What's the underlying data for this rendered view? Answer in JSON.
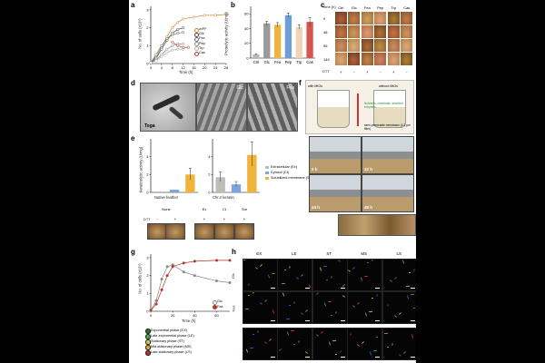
{
  "panel_labels": [
    "a",
    "b",
    "c",
    "d",
    "e",
    "f",
    "g",
    "h"
  ],
  "panel_a": {
    "ylabel": "No. of cells (x10⁹)",
    "xlabel": "Time (h)",
    "legend": [
      "w/FF",
      "Glc",
      "Fea",
      "Pep",
      "Trp",
      "Cas"
    ]
  },
  "panel_b": {
    "ylabel": "Proteolytic activity (U/mg)"
  },
  "panel_c": {
    "header_time": "Time (h)",
    "cols": [
      "Ctrl",
      "Glc",
      "Fea",
      "Pep",
      "Trp",
      "Cas"
    ],
    "rows": [
      "0",
      "48",
      "96",
      "144"
    ],
    "dtt_label": "DTT",
    "dtt_signs": [
      "+",
      "-",
      "+",
      "-",
      "+",
      "-"
    ]
  },
  "panel_d": {
    "labels": [
      "Glc",
      "Fea",
      "Toga"
    ]
  },
  "panel_e": {
    "ylabel": "Keratinolytic activity (U/mg)",
    "legend": [
      "Extracellular (Ex)",
      "Cytosol (Ct)",
      "Solubilized membrane (Sm)"
    ],
    "group_labels": [
      "Native feather",
      "Chr.2 keratin"
    ],
    "strip_headers": [
      "None",
      "Ex",
      "Ct",
      "Sm"
    ],
    "dtt_label": "DTT",
    "dtt_signs": [
      "-",
      "+",
      "+",
      "+",
      "+"
    ]
  },
  "panel_f": {
    "left_label": "with MtOs",
    "right_label": "without MtOs",
    "middle_text": "Nutrients, chemicals, secreted enzymes",
    "membrane_text": "semi-permeable membrane (0.2 μm filter)",
    "times": [
      "0 h",
      "32 h",
      "24 h",
      "48 h"
    ]
  },
  "panel_g": {
    "ylabel": "No. of cells (x10⁹)",
    "xlabel": "Time (h)",
    "legend": [
      "Glc",
      "Fea"
    ],
    "phase_legend": [
      "Exponential phase (EX)",
      "Late-exponential phase (LE)",
      "Stationary phase (ST)",
      "Mid-stationary phase (MS)",
      "Late-stationary phase (LS)"
    ],
    "phase_colors": [
      "#2d6b2f",
      "#3fae49",
      "#c9d43a",
      "#f0a22b",
      "#b5352a"
    ]
  },
  "panel_h": {
    "cols": [
      "EX",
      "LE",
      "ST",
      "MS",
      "LS"
    ],
    "rows": [
      "Glc",
      "Fea"
    ]
  },
  "chart_data": [
    {
      "type": "line",
      "ylabel": "No. of cells (x10⁹)",
      "xlabel": "Time (h)",
      "x_ticks": [
        "0",
        "4",
        "8",
        "12",
        "16",
        "20",
        "24",
        "28"
      ],
      "y_ticks": [
        "0",
        "1",
        "2",
        "3"
      ],
      "ylim": [
        0,
        3.2
      ],
      "series": [
        {
          "name": "w/FF",
          "x": [
            0,
            2,
            4,
            6,
            8,
            10,
            12,
            16,
            20,
            24,
            28
          ],
          "y": [
            0.05,
            0.4,
            0.9,
            1.5,
            2.0,
            2.3,
            2.5,
            2.6,
            2.7,
            2.7,
            2.75
          ],
          "color": "#c8872b"
        },
        {
          "name": "Glc",
          "x": [
            0,
            2,
            4,
            6,
            8,
            10,
            12
          ],
          "y": [
            0.05,
            0.3,
            0.8,
            1.3,
            1.7,
            1.9,
            2.0
          ],
          "color": "#444444"
        },
        {
          "name": "Fea",
          "x": [
            0,
            2,
            4,
            6,
            8,
            10,
            12
          ],
          "y": [
            0.05,
            0.5,
            1.0,
            1.4,
            1.6,
            1.7,
            1.75
          ],
          "color": "#666666"
        },
        {
          "name": "Pep",
          "x": [
            0,
            2,
            4,
            6,
            8,
            10,
            12
          ],
          "y": [
            0.05,
            0.2,
            0.5,
            0.8,
            1.0,
            1.1,
            1.1
          ],
          "color": "#888888"
        },
        {
          "name": "Trp",
          "x": [
            0,
            2,
            4,
            6,
            8,
            10,
            12
          ],
          "y": [
            0.05,
            0.15,
            0.4,
            0.6,
            0.75,
            0.8,
            0.8
          ],
          "color": "#aaaaaa"
        },
        {
          "name": "Cas",
          "x": [
            8,
            10,
            12,
            14
          ],
          "y": [
            1.2,
            1.0,
            0.9,
            0.9
          ],
          "color": "#b5352a"
        }
      ]
    },
    {
      "type": "bar",
      "ylabel": "Proteolytic activity (U/mg)",
      "categories": [
        "Ctrl",
        "Glc",
        "Fea",
        "Pep",
        "Trp",
        "Cas"
      ],
      "values": [
        5,
        47,
        45,
        58,
        42,
        49
      ],
      "errors": [
        1,
        3,
        3,
        3,
        3,
        6
      ],
      "colors": [
        "#b9b9b9",
        "#9a9a9a",
        "#f0b43c",
        "#6b9fd8",
        "#f3d3b8",
        "#d9534f"
      ],
      "y_ticks": [
        "0",
        "20",
        "40",
        "60"
      ],
      "ylim": [
        0,
        70
      ]
    },
    {
      "type": "bar",
      "ylabel": "Keratinolytic activity (U/mg)",
      "categories": [
        "Native feather",
        "Chr.2 keratin"
      ],
      "series": [
        {
          "name": "Extracellular (Ex)",
          "values": [
            0,
            1.7
          ],
          "color": "#bcbcbc"
        },
        {
          "name": "Cytosol (Ct)",
          "values": [
            0.3,
            0.9
          ],
          "color": "#7aa6dc"
        },
        {
          "name": "Solubilized membrane (Sm)",
          "values": [
            2.0,
            4.2
          ],
          "color": "#f0b43c"
        }
      ],
      "y_ticks": [
        "0",
        "2",
        "4"
      ]
    },
    {
      "type": "line",
      "ylabel": "No. of cells (x10⁹)",
      "xlabel": "Time (h)",
      "x_ticks": [
        "0",
        "20",
        "40",
        "60"
      ],
      "y_ticks": [
        "0",
        "1",
        "2",
        "3"
      ],
      "ylim": [
        0,
        3.2
      ],
      "series": [
        {
          "name": "Glc",
          "x": [
            0,
            5,
            10,
            15,
            20,
            30,
            40,
            60,
            72
          ],
          "y": [
            0.05,
            0.6,
            1.8,
            2.5,
            2.6,
            2.2,
            2.0,
            1.7,
            1.6
          ],
          "color": "#888888"
        },
        {
          "name": "Fea",
          "x": [
            0,
            5,
            10,
            15,
            20,
            30,
            40,
            60,
            72
          ],
          "y": [
            0.05,
            0.4,
            1.2,
            2.0,
            2.5,
            2.7,
            2.8,
            2.85,
            2.85
          ],
          "color": "#b5352a"
        }
      ]
    }
  ]
}
